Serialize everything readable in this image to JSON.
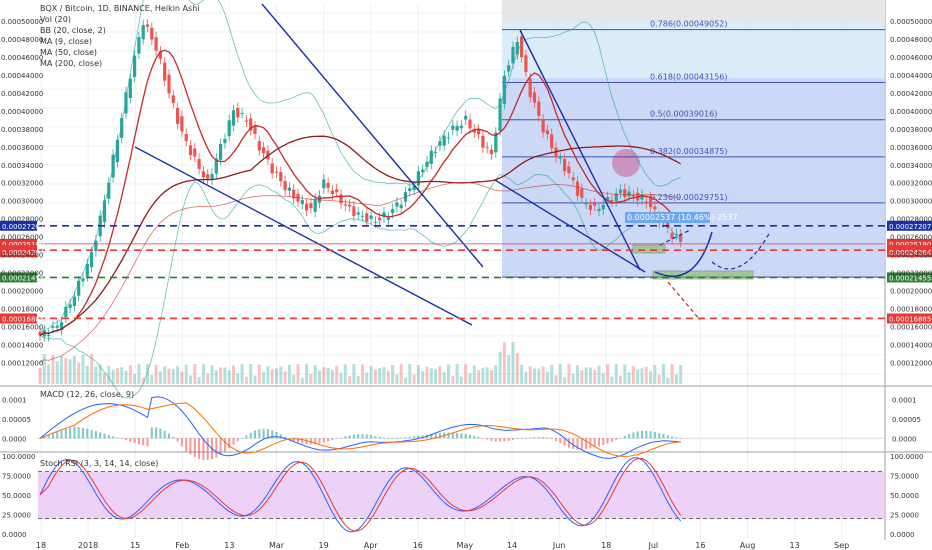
{
  "legend": {
    "main_title": "BQX / Bitcoin, 1D, BINANCE, Heikin Ashi",
    "indicators": [
      "Vol (20)",
      "BB (20, close, 2)",
      "MA (9, close)",
      "MA (50, close)",
      "MA (200, close)"
    ],
    "macd": "MACD (12, 26, close, 9)",
    "rsi": "Stoch RSI (3, 3, 14, 14, close)"
  },
  "chart_data": [
    {
      "type": "candlestick",
      "title": "BQX / Bitcoin, 1D, BINANCE, Heikin Ashi",
      "x_ticks": [
        "18",
        "2018",
        "15",
        "Feb",
        "13",
        "Mar",
        "19",
        "Apr",
        "16",
        "May",
        "14",
        "Jun",
        "18",
        "Jul",
        "16",
        "Aug",
        "13",
        "Sep"
      ],
      "y_ticks": [
        "0.00050000",
        "0.00048000",
        "0.00046000",
        "0.00044000",
        "0.00042000",
        "0.00040000",
        "0.00038000",
        "0.00036000",
        "0.00034000",
        "0.00032000",
        "0.00030000",
        "0.00028000",
        "0.00026000",
        "0.00024000",
        "0.00022000",
        "0.00020000",
        "0.00018000",
        "0.00016000",
        "0.00014000",
        "0.00012000"
      ],
      "ylim": [
        0.000107,
        0.000509
      ],
      "price_levels": [
        {
          "value": 0.00027207,
          "label": "0.00027207",
          "color": "#1a2faa",
          "style": "dashed"
        },
        {
          "value": 0.0002519,
          "label": "0.00025190",
          "color": "#e53935",
          "style": "solid"
        },
        {
          "value": 0.00024487,
          "label": "0.00024487",
          "color": "#e53935",
          "style": "dashed"
        },
        {
          "value": 0.00024264,
          "label": "0.00024264",
          "color": "#e53935",
          "style": "none"
        },
        {
          "value": 0.00021455,
          "label": "0.00021455",
          "color": "#2e7d32",
          "style": "dashed"
        },
        {
          "value": 0.00016885,
          "label": "0.00016885",
          "color": "#e53935",
          "style": "dashed"
        }
      ],
      "fibonacci": {
        "high": 0.000555,
        "low": 0.000215,
        "levels": [
          {
            "ratio": 0.786,
            "label": "0.786(0.00049052)",
            "value": 0.00049052
          },
          {
            "ratio": 0.618,
            "label": "0.618(0.00043156)",
            "value": 0.00043156
          },
          {
            "ratio": 0.5,
            "label": "0.5(0.00039016)",
            "value": 0.00039016
          },
          {
            "ratio": 0.382,
            "label": "0.382(0.00034875)",
            "value": 0.00034875
          },
          {
            "ratio": 0.236,
            "label": "0.236(0.00029751)",
            "value": 0.00029751
          }
        ]
      },
      "measure_label": "0.00002537 (10.46%) 2537",
      "price_path": [
        [
          0,
          0.00015
        ],
        [
          4,
          0.00016
        ],
        [
          8,
          0.000195
        ],
        [
          12,
          0.00024
        ],
        [
          15,
          0.0003
        ],
        [
          18,
          0.00037
        ],
        [
          21,
          0.00044
        ],
        [
          24,
          0.0005
        ],
        [
          27,
          0.00047
        ],
        [
          30,
          0.00042
        ],
        [
          33,
          0.000375
        ],
        [
          36,
          0.000345
        ],
        [
          39,
          0.00032
        ],
        [
          42,
          0.00036
        ],
        [
          45,
          0.0004
        ],
        [
          48,
          0.00039
        ],
        [
          51,
          0.00036
        ],
        [
          54,
          0.000335
        ],
        [
          57,
          0.000315
        ],
        [
          60,
          0.0003
        ],
        [
          63,
          0.00029
        ],
        [
          66,
          0.00032
        ],
        [
          69,
          0.000305
        ],
        [
          72,
          0.00029
        ],
        [
          75,
          0.000282
        ],
        [
          78,
          0.000278
        ],
        [
          81,
          0.000285
        ],
        [
          84,
          0.0003
        ],
        [
          87,
          0.00032
        ],
        [
          90,
          0.000345
        ],
        [
          93,
          0.000365
        ],
        [
          96,
          0.00038
        ],
        [
          99,
          0.00039
        ],
        [
          102,
          0.00037
        ],
        [
          105,
          0.00035
        ],
        [
          108,
          0.00044
        ],
        [
          111,
          0.00048
        ],
        [
          114,
          0.00042
        ],
        [
          117,
          0.00038
        ],
        [
          120,
          0.00035
        ],
        [
          123,
          0.00033
        ],
        [
          126,
          0.0003
        ],
        [
          129,
          0.00029
        ],
        [
          132,
          0.0003
        ],
        [
          135,
          0.00031
        ],
        [
          138,
          0.000305
        ],
        [
          141,
          0.0003
        ],
        [
          144,
          0.00028
        ],
        [
          147,
          0.000262
        ],
        [
          150,
          0.000252
        ]
      ]
    },
    {
      "type": "line",
      "title": "MACD (12, 26, close, 9)",
      "y_ticks": [
        "0.0001",
        "0.00005",
        "0.0000"
      ],
      "ylim": [
        -2e-05,
        0.00012
      ]
    },
    {
      "type": "line",
      "title": "Stoch RSI (3, 3, 14, 14, close)",
      "y_ticks": [
        "100.0000",
        "75.0000",
        "50.0000",
        "25.0000",
        "0.0000"
      ],
      "ylim": [
        -5,
        105
      ],
      "band": [
        20,
        80
      ]
    }
  ],
  "colors": {
    "up": "#26a69a",
    "down": "#ef5350",
    "trend": "#1a2faa",
    "fib_fill": "#cfe7f7",
    "fib_fill_dark": "#c0c8f4",
    "ma": "#b71c1c",
    "rsi_band": "#e9c5f5"
  }
}
